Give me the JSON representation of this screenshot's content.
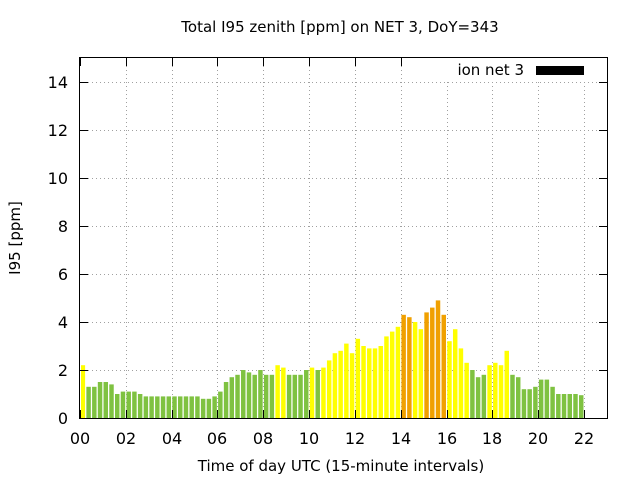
{
  "chart_data": {
    "type": "bar",
    "title": "Total I95 zenith [ppm] on NET 3, DoY=343",
    "xlabel": "Time of day UTC (15-minute intervals)",
    "ylabel": "I95 [ppm]",
    "ylim": [
      0,
      15
    ],
    "xlim": [
      0,
      23
    ],
    "yticks": [
      0,
      2,
      4,
      6,
      8,
      10,
      12,
      14
    ],
    "xticks": [
      0,
      2,
      4,
      6,
      8,
      10,
      12,
      14,
      16,
      18,
      20,
      22
    ],
    "xtick_labels": [
      "00",
      "02",
      "04",
      "06",
      "08",
      "10",
      "12",
      "14",
      "16",
      "18",
      "20",
      "22"
    ],
    "grid": true,
    "legend": {
      "label": "ion net 3",
      "position": "top-right",
      "color": "#000000"
    },
    "colors": {
      "green": "#7fc241",
      "yellow": "#ffff00",
      "orange": "#f0a000"
    },
    "interval_hours": 0.25,
    "values": [
      2.2,
      1.3,
      1.3,
      1.5,
      1.5,
      1.4,
      1.0,
      1.1,
      1.1,
      1.1,
      1.0,
      0.9,
      0.9,
      0.9,
      0.9,
      0.9,
      0.9,
      0.9,
      0.9,
      0.9,
      0.9,
      0.8,
      0.8,
      0.9,
      1.1,
      1.5,
      1.7,
      1.8,
      2.0,
      1.9,
      1.8,
      2.0,
      1.8,
      1.8,
      2.2,
      2.1,
      1.8,
      1.8,
      1.8,
      2.0,
      2.1,
      2.0,
      2.1,
      2.4,
      2.7,
      2.8,
      3.1,
      2.7,
      3.3,
      3.0,
      2.9,
      2.9,
      3.0,
      3.4,
      3.6,
      3.8,
      4.3,
      4.2,
      4.0,
      3.7,
      4.4,
      4.6,
      4.9,
      4.3,
      3.2,
      3.7,
      2.9,
      2.3,
      2.0,
      1.7,
      1.8,
      2.2,
      2.3,
      2.2,
      2.8,
      1.8,
      1.7,
      1.2,
      1.2,
      1.3,
      1.6,
      1.6,
      1.3,
      1.0,
      1.0,
      1.0,
      1.0,
      0.95
    ],
    "bar_colors": [
      "yellow",
      "green",
      "green",
      "green",
      "green",
      "green",
      "green",
      "green",
      "green",
      "green",
      "green",
      "green",
      "green",
      "green",
      "green",
      "green",
      "green",
      "green",
      "green",
      "green",
      "green",
      "green",
      "green",
      "green",
      "green",
      "green",
      "green",
      "green",
      "green",
      "green",
      "green",
      "green",
      "green",
      "green",
      "yellow",
      "yellow",
      "green",
      "green",
      "green",
      "green",
      "yellow",
      "green",
      "yellow",
      "yellow",
      "yellow",
      "yellow",
      "yellow",
      "yellow",
      "yellow",
      "yellow",
      "yellow",
      "yellow",
      "yellow",
      "yellow",
      "yellow",
      "yellow",
      "orange",
      "orange",
      "yellow",
      "yellow",
      "orange",
      "orange",
      "orange",
      "orange",
      "yellow",
      "yellow",
      "yellow",
      "yellow",
      "green",
      "green",
      "green",
      "yellow",
      "yellow",
      "yellow",
      "yellow",
      "green",
      "green",
      "green",
      "green",
      "green",
      "green",
      "green",
      "green",
      "green",
      "green",
      "green",
      "green",
      "green"
    ]
  }
}
